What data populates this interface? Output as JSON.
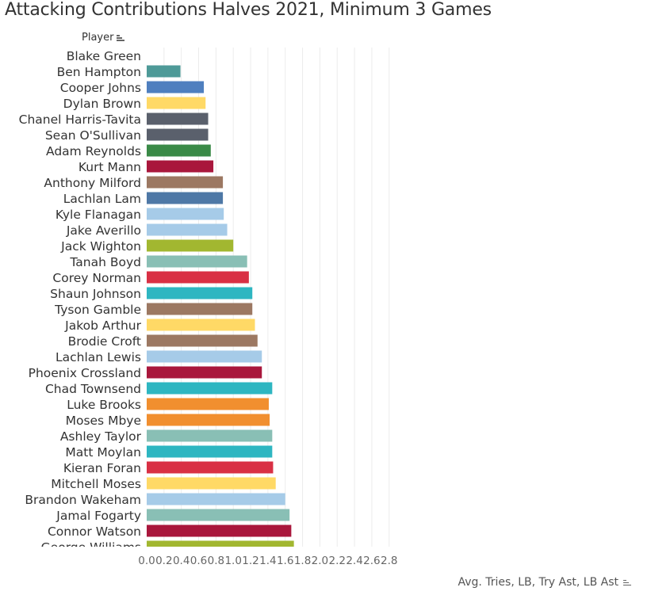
{
  "title": "Attacking Contributions Halves 2021, Minimum 3 Games",
  "player_header": "Player",
  "x_axis_title": "Avg. Tries, LB, Try Ast, LB Ast",
  "chart_data": {
    "type": "bar",
    "orientation": "horizontal",
    "title": "Attacking Contributions Halves 2021, Minimum 3 Games",
    "xlabel": "Avg. Tries, LB, Try Ast, LB Ast",
    "ylabel": "Player",
    "xlim": [
      0,
      2.9
    ],
    "x_ticks": [
      "0.0",
      "0.2",
      "0.4",
      "0.6",
      "0.8",
      "1.0",
      "1.2",
      "1.4",
      "1.6",
      "1.8",
      "2.0",
      "2.2",
      "2.4",
      "2.6",
      "2.8"
    ],
    "grid": "vertical",
    "categories": [
      "Blake Green",
      "Ben Hampton",
      "Cooper Johns",
      "Dylan Brown",
      "Chanel Harris-Tavita",
      "Sean O'Sullivan",
      "Adam Reynolds",
      "Kurt Mann",
      "Anthony Milford",
      "Lachlan Lam",
      "Kyle Flanagan",
      "Jake Averillo",
      "Jack Wighton",
      "Tanah Boyd",
      "Corey Norman",
      "Shaun Johnson",
      "Tyson Gamble",
      "Jakob Arthur",
      "Brodie Croft",
      "Lachlan Lewis",
      "Phoenix Crossland",
      "Chad Townsend",
      "Luke Brooks",
      "Moses Mbye",
      "Ashley Taylor",
      "Matt Moylan",
      "Kieran Foran",
      "Mitchell Moses",
      "Brandon Wakeham",
      "Jamal Fogarty",
      "Connor Watson",
      "George Williams"
    ],
    "values": [
      0.0,
      0.39,
      0.66,
      0.68,
      0.71,
      0.71,
      0.74,
      0.77,
      0.88,
      0.88,
      0.89,
      0.93,
      1.0,
      1.16,
      1.18,
      1.22,
      1.22,
      1.25,
      1.28,
      1.33,
      1.33,
      1.45,
      1.41,
      1.42,
      1.45,
      1.45,
      1.46,
      1.49,
      1.6,
      1.65,
      1.67,
      1.7
    ],
    "colors": [
      "#ffffff",
      "#4e9a98",
      "#4f7fbf",
      "#ffd966",
      "#5a606c",
      "#5a606c",
      "#3a8a47",
      "#a9173c",
      "#9c7862",
      "#4e78a6",
      "#a6cbe8",
      "#a6cbe8",
      "#a2b730",
      "#89bfb5",
      "#d93044",
      "#2eb6c1",
      "#9c7862",
      "#ffd966",
      "#9c7862",
      "#a6cbe8",
      "#a9173c",
      "#2eb6c1",
      "#f18f2f",
      "#f18f2f",
      "#89bfb5",
      "#2eb6c1",
      "#d93044",
      "#ffd966",
      "#a6cbe8",
      "#89bfb5",
      "#a9173c",
      "#a2b730"
    ]
  }
}
